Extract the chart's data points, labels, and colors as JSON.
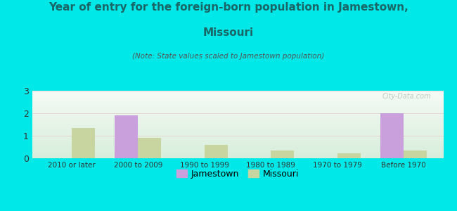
{
  "categories": [
    "2010 or later",
    "2000 to 2009",
    "1990 to 1999",
    "1980 to 1989",
    "1970 to 1979",
    "Before 1970"
  ],
  "jamestown_values": [
    0,
    1.9,
    0,
    0,
    0,
    2.0
  ],
  "missouri_values": [
    1.35,
    0.9,
    0.58,
    0.35,
    0.22,
    0.35
  ],
  "jamestown_color": "#c9a0dc",
  "missouri_color": "#c8d5a0",
  "title_line1": "Year of entry for the foreign-born population in Jamestown,",
  "title_line2": "Missouri",
  "subtitle": "(Note: State values scaled to Jamestown population)",
  "title_fontsize": 11,
  "subtitle_fontsize": 7.5,
  "xlabel": "",
  "ylabel": "",
  "ylim": [
    0,
    3
  ],
  "yticks": [
    0,
    1,
    2,
    3
  ],
  "background_color": "#00e8e8",
  "plot_bg_green": "#d8eedb",
  "plot_bg_white": "#f5faf5",
  "watermark": "City-Data.com",
  "legend_labels": [
    "Jamestown",
    "Missouri"
  ],
  "bar_width": 0.35,
  "title_color": "#1a6666"
}
